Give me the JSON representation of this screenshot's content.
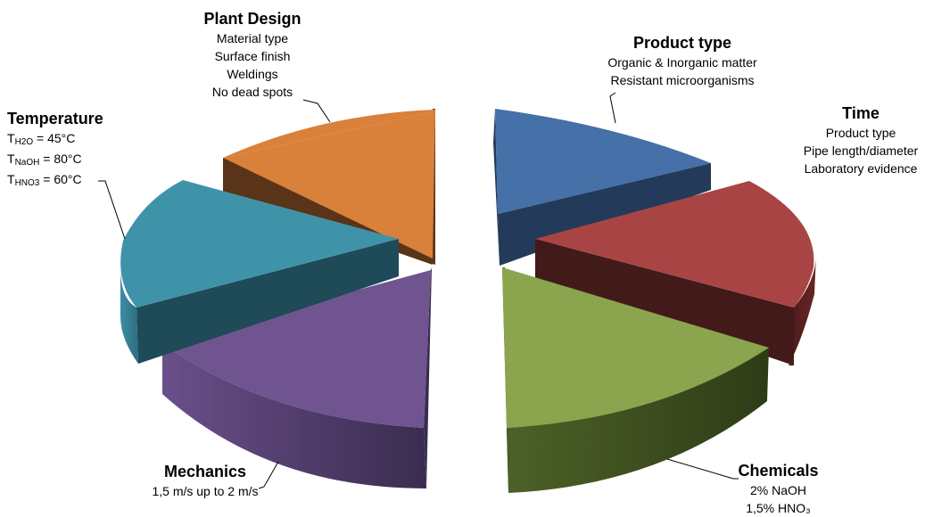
{
  "chart_data": {
    "type": "pie",
    "style": "3d-exploded",
    "categories": [
      "Product type",
      "Time",
      "Chemicals",
      "Mechanics",
      "Temperature",
      "Plant Design"
    ],
    "values": [
      1,
      1,
      1,
      1,
      1,
      1
    ],
    "colors": [
      "#4570a8",
      "#a84544",
      "#8aa54d",
      "#6f5490",
      "#3f93a9",
      "#d9803b"
    ],
    "legend": "none",
    "labels": [
      {
        "title": "Plant Design",
        "lines": [
          "Material type",
          "Surface finish",
          "Weldings",
          "No dead spots"
        ]
      },
      {
        "title": "Product type",
        "lines": [
          "Organic & Inorganic matter",
          "Resistant microorganisms"
        ]
      },
      {
        "title": "Time",
        "lines": [
          "Product type",
          "Pipe length/diameter",
          "Laboratory evidence"
        ]
      },
      {
        "title": "Temperature",
        "lines": [
          {
            "pre": "T",
            "sub": "H2O",
            "post": " = 45°C"
          },
          {
            "pre": "T",
            "sub": "NaOH",
            "post": " = 80°C"
          },
          {
            "pre": "T",
            "sub": "HNO3",
            "post": " = 60°C"
          }
        ]
      },
      {
        "title": "Mechanics",
        "lines": [
          "1,5 m/s up to 2 m/s"
        ]
      },
      {
        "title": "Chemicals",
        "lines": [
          "2% NaOH",
          "1,5% HNO₃"
        ]
      }
    ]
  }
}
